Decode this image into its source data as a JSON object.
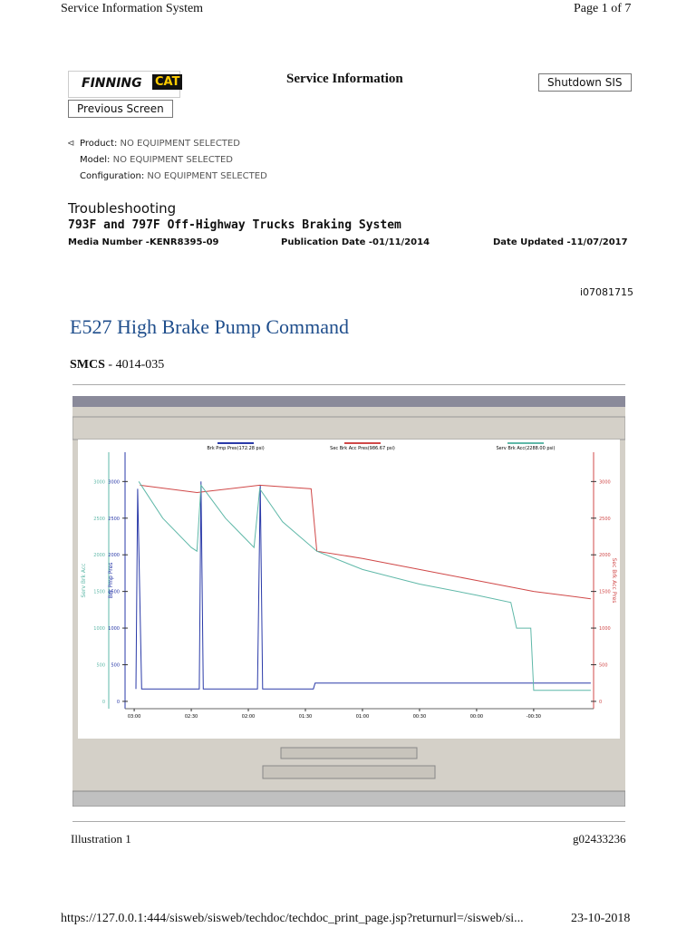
{
  "header": {
    "left": "Service Information System",
    "right": "Page 1 of 7"
  },
  "toolbar": {
    "logo": "FINNING",
    "logo_cat": "CAT",
    "title": "Service Information",
    "shutdown": "Shutdown SIS",
    "previous": "Previous Screen"
  },
  "equipment": [
    {
      "label": "Product:",
      "value": "NO EQUIPMENT SELECTED"
    },
    {
      "label": "Model:",
      "value": "NO EQUIPMENT SELECTED"
    },
    {
      "label": "Configuration:",
      "value": "NO EQUIPMENT SELECTED"
    }
  ],
  "doc": {
    "category": "Troubleshooting",
    "subtitle": "793F and 797F Off-Highway Trucks Braking System",
    "media": "Media Number -KENR8395-09",
    "publication": "Publication Date -01/11/2014",
    "updated": "Date Updated -11/07/2017",
    "id": "i07081715",
    "heading": "E527 High Brake Pump Command",
    "smcs_label": "SMCS",
    "smcs_value": "- 4014-035"
  },
  "chart_data": {
    "type": "line",
    "y_label_left": "Serv Brk Acc",
    "y_label_left2": "Brk Pmp Pres",
    "y_label_right": "Sec Brk Acc Pres",
    "xlim": [
      -0.16,
      8.05
    ],
    "ylim": [
      -100,
      3400
    ],
    "xticks": [
      {
        "value": 0,
        "label": "03:00"
      },
      {
        "value": 1,
        "label": "02:30"
      },
      {
        "value": 2,
        "label": "02:00"
      },
      {
        "value": 3,
        "label": "01:30"
      },
      {
        "value": 4,
        "label": "01:00"
      },
      {
        "value": 5,
        "label": "00:30"
      },
      {
        "value": 6,
        "label": "00:00"
      },
      {
        "value": 7,
        "label": "-00:30"
      }
    ],
    "yticks": [
      0,
      500,
      1000,
      1500,
      2000,
      2500,
      3000
    ],
    "series": [
      {
        "name": "Brk Pmp Pres(172.28 psi)",
        "color": "#2a3aa8",
        "x": [
          0.03,
          0.06,
          0.13,
          1.14,
          1.17,
          1.21,
          2.16,
          2.21,
          2.25,
          3.14,
          3.17,
          8.0
        ],
        "values": [
          170,
          2900,
          170,
          170,
          3000,
          170,
          170,
          2950,
          170,
          170,
          250,
          250
        ]
      },
      {
        "name": "Sec Brk Acc Pres(986.67 psi)",
        "color": "#d04848",
        "x": [
          0.1,
          1.1,
          2.2,
          3.1,
          3.2,
          4.0,
          5.0,
          6.0,
          7.0,
          8.0
        ],
        "values": [
          2950,
          2850,
          2950,
          2900,
          2050,
          1950,
          1800,
          1650,
          1500,
          1400
        ]
      },
      {
        "name": "Serv Brk Acc(2288.00 psi)",
        "color": "#5fb8a8",
        "x": [
          0.08,
          0.5,
          1.0,
          1.1,
          1.17,
          1.6,
          2.1,
          2.2,
          2.6,
          3.2,
          4.0,
          5.0,
          6.0,
          6.6,
          6.7,
          6.95,
          7.0,
          8.0
        ],
        "values": [
          3000,
          2500,
          2100,
          2050,
          2950,
          2500,
          2100,
          2900,
          2450,
          2050,
          1800,
          1600,
          1450,
          1350,
          1000,
          1000,
          150,
          150
        ]
      }
    ]
  },
  "illustration": {
    "caption": "Illustration 1",
    "code": "g02433236"
  },
  "footer": {
    "url": "https://127.0.0.1:444/sisweb/sisweb/techdoc/techdoc_print_page.jsp?returnurl=/sisweb/si...",
    "date": "23-10-2018"
  }
}
